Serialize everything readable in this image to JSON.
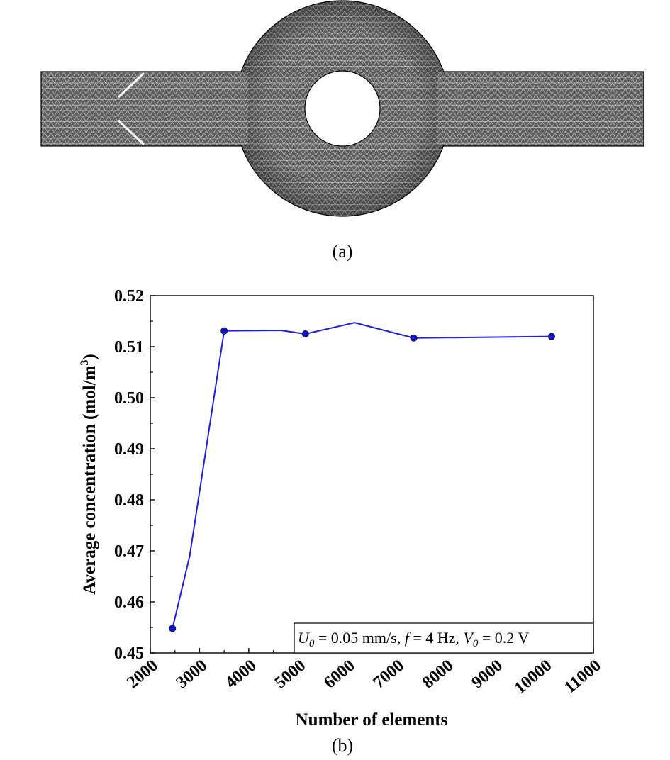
{
  "panels": {
    "a_label": "(a)",
    "b_label": "(b)"
  },
  "colors": {
    "series": "#1f1fe0",
    "marker": "#1515c8",
    "mesh_fill": "#5e5e5e",
    "mesh_line": "#c8c8c8",
    "axis": "#000000"
  },
  "chart_data": {
    "type": "line",
    "title": "",
    "xlabel": "Number of elements",
    "ylabel_main": "Average concentration (mol/m",
    "ylabel_sup": "3",
    "ylabel_end": ")",
    "xlim": [
      2000,
      11000
    ],
    "ylim": [
      0.45,
      0.52
    ],
    "xticks": [
      2000,
      3000,
      4000,
      5000,
      6000,
      7000,
      8000,
      9000,
      10000,
      11000
    ],
    "yticks": [
      "0.45",
      "0.46",
      "0.47",
      "0.48",
      "0.49",
      "0.50",
      "0.51",
      "0.52"
    ],
    "grid": false,
    "series": [
      {
        "line_x": [
          2450,
          2800,
          3500,
          4650,
          5150,
          6150,
          7350,
          10150
        ],
        "line_y": [
          0.4548,
          0.469,
          0.5131,
          0.5132,
          0.5125,
          0.5147,
          0.5117,
          0.512
        ],
        "marker_x": [
          2450,
          3500,
          5150,
          7350,
          10150
        ],
        "marker_y": [
          0.4548,
          0.5131,
          0.5125,
          0.5117,
          0.512
        ]
      }
    ],
    "annotation": {
      "u0_sym": "U",
      "u0_sub": "0",
      "u0_val": " = 0.05 mm/s, ",
      "f_sym": "f",
      "f_val": " = 4 Hz, ",
      "v0_sym": "V",
      "v0_sub": "0",
      "v0_val": " = 0.2 V"
    }
  }
}
